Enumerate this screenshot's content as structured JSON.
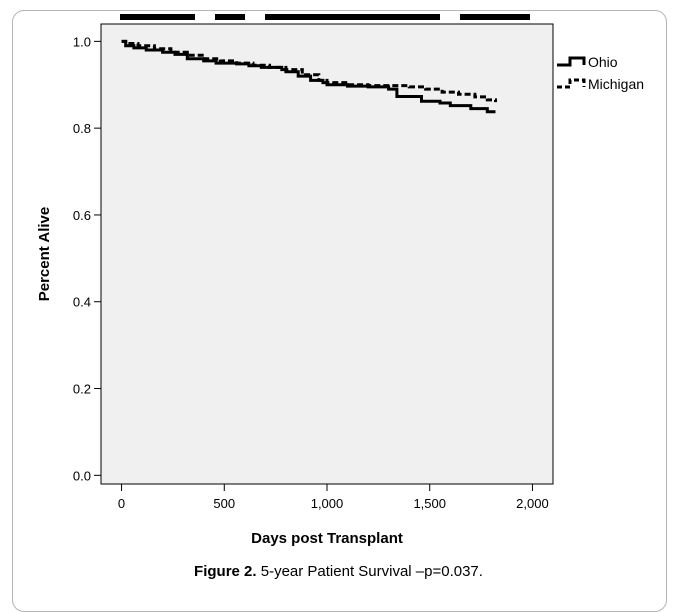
{
  "chart_data": {
    "type": "line",
    "title": "",
    "xlabel": "Days post Transplant",
    "ylabel": "Percent Alive",
    "xlim": [
      -100,
      2100
    ],
    "ylim": [
      -0.02,
      1.04
    ],
    "xticks": [
      0,
      500,
      1000,
      1500,
      2000
    ],
    "xtick_labels": [
      "0",
      "500",
      "1,000",
      "1,500",
      "2,000"
    ],
    "yticks": [
      0.0,
      0.2,
      0.4,
      0.6,
      0.8,
      1.0
    ],
    "ytick_labels": [
      "0.0",
      "0.2",
      "0.4",
      "0.6",
      "0.8",
      "1.0"
    ],
    "grid": false,
    "legend_position": "right",
    "series": [
      {
        "name": "Ohio",
        "style": "solid",
        "x": [
          0,
          20,
          60,
          120,
          200,
          260,
          320,
          400,
          460,
          560,
          620,
          680,
          780,
          800,
          860,
          920,
          980,
          1000,
          1100,
          1200,
          1300,
          1340,
          1450,
          1460,
          1550,
          1600,
          1700,
          1780,
          1820
        ],
        "y": [
          1.0,
          0.99,
          0.985,
          0.98,
          0.975,
          0.97,
          0.96,
          0.955,
          0.95,
          0.948,
          0.944,
          0.94,
          0.935,
          0.93,
          0.92,
          0.91,
          0.905,
          0.9,
          0.897,
          0.895,
          0.89,
          0.873,
          0.873,
          0.862,
          0.858,
          0.852,
          0.845,
          0.838,
          0.838
        ]
      },
      {
        "name": "Michigan",
        "style": "dashed",
        "x": [
          0,
          20,
          80,
          160,
          240,
          320,
          400,
          480,
          560,
          640,
          720,
          800,
          880,
          960,
          1000,
          1100,
          1200,
          1300,
          1400,
          1480,
          1560,
          1640,
          1720,
          1780,
          1820
        ],
        "y": [
          1.0,
          0.995,
          0.99,
          0.983,
          0.975,
          0.968,
          0.96,
          0.955,
          0.95,
          0.945,
          0.94,
          0.935,
          0.923,
          0.91,
          0.905,
          0.9,
          0.898,
          0.898,
          0.895,
          0.89,
          0.883,
          0.878,
          0.872,
          0.865,
          0.86
        ]
      }
    ]
  },
  "caption": {
    "label": "Figure 2.",
    "text": " 5-year Patient Survival –p=0.037."
  }
}
